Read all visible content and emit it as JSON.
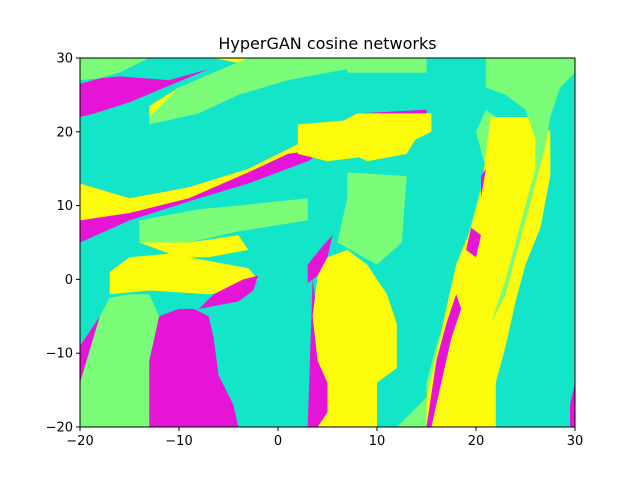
{
  "chart_data": {
    "type": "heatmap",
    "title": "HyperGAN cosine networks",
    "xlabel": "",
    "ylabel": "",
    "xlim": [
      -20,
      30
    ],
    "ylim": [
      -20,
      30
    ],
    "x_ticks": [
      -20,
      -10,
      0,
      10,
      20,
      30
    ],
    "y_ticks": [
      -20,
      -10,
      0,
      10,
      20,
      30
    ],
    "x_tick_labels": [
      "−20",
      "−10",
      "0",
      "10",
      "20",
      "30"
    ],
    "y_tick_labels": [
      "−20",
      "−10",
      "0",
      "10",
      "20",
      "30"
    ],
    "grid": false,
    "legend": "none",
    "classes": [
      {
        "name": "class-1",
        "color": "#13e5c9"
      },
      {
        "name": "class-2",
        "color": "#7afc78"
      },
      {
        "name": "class-3",
        "color": "#fbfb0b"
      },
      {
        "name": "class-4",
        "color": "#e514d6"
      }
    ],
    "regions": [
      {
        "class": "class-4",
        "points": [
          [
            -20,
            30
          ],
          [
            -6.5,
            30
          ],
          [
            -7,
            28.5
          ],
          [
            -15,
            24
          ],
          [
            -18.5,
            22.5
          ],
          [
            -20,
            22
          ]
        ]
      },
      {
        "class": "class-3",
        "points": [
          [
            -6.5,
            30
          ],
          [
            -3,
            30
          ],
          [
            -10,
            26
          ],
          [
            -13,
            23.5
          ],
          [
            -13,
            22
          ],
          [
            -7,
            24.5
          ],
          [
            -4,
            26.5
          ],
          [
            -1,
            28.5
          ]
        ]
      },
      {
        "class": "class-2",
        "points": [
          [
            -3,
            30
          ],
          [
            9,
            30
          ],
          [
            7,
            28.5
          ],
          [
            1,
            27
          ],
          [
            -4,
            25
          ],
          [
            -8,
            22.5
          ],
          [
            -13,
            21
          ],
          [
            -13,
            22
          ],
          [
            -10,
            26
          ]
        ]
      },
      {
        "class": "class-2",
        "points": [
          [
            -20,
            30
          ],
          [
            -13,
            30
          ],
          [
            -16,
            28
          ],
          [
            -20,
            26.5
          ]
        ]
      },
      {
        "class": "class-1",
        "points": [
          [
            -13,
            30
          ],
          [
            -6.5,
            30
          ],
          [
            -7,
            28.5
          ],
          [
            -11,
            27
          ],
          [
            -16,
            27.5
          ],
          [
            -20,
            27
          ],
          [
            -20,
            26.5
          ],
          [
            -16,
            28
          ]
        ]
      },
      {
        "class": "class-4",
        "points": [
          [
            -20,
            20
          ],
          [
            -20,
            13
          ],
          [
            -15,
            11
          ],
          [
            -9,
            12.5
          ],
          [
            -3,
            15
          ],
          [
            3,
            19
          ],
          [
            8,
            22.5
          ],
          [
            15,
            23
          ],
          [
            15,
            22
          ],
          [
            8,
            20
          ],
          [
            3,
            16
          ],
          [
            -3,
            13
          ],
          [
            -8,
            11
          ],
          [
            -15,
            8
          ],
          [
            -20,
            5
          ]
        ]
      },
      {
        "class": "class-3",
        "points": [
          [
            -20,
            13
          ],
          [
            -20,
            8
          ],
          [
            -15,
            9
          ],
          [
            -9,
            11
          ],
          [
            -3,
            14.5
          ],
          [
            1,
            17
          ],
          [
            6,
            18
          ],
          [
            9,
            16
          ],
          [
            13,
            17
          ],
          [
            15.5,
            22.5
          ],
          [
            8,
            22.5
          ],
          [
            3,
            19
          ],
          [
            -3,
            15
          ],
          [
            -9,
            12.5
          ],
          [
            -15,
            11
          ]
        ]
      },
      {
        "class": "class-3",
        "points": [
          [
            2,
            21
          ],
          [
            15.5,
            22.5
          ],
          [
            15.5,
            20
          ],
          [
            11,
            17
          ],
          [
            5,
            16
          ],
          [
            2,
            17
          ]
        ]
      },
      {
        "class": "class-2",
        "points": [
          [
            7,
            28
          ],
          [
            15,
            28
          ],
          [
            15,
            30
          ],
          [
            9,
            30
          ],
          [
            7,
            28.5
          ]
        ]
      },
      {
        "class": "class-2",
        "points": [
          [
            7,
            14.5
          ],
          [
            13,
            14
          ],
          [
            12.5,
            5
          ],
          [
            10,
            2
          ],
          [
            6,
            5
          ],
          [
            7,
            11
          ]
        ]
      },
      {
        "class": "class-2",
        "points": [
          [
            -14,
            8
          ],
          [
            -8,
            9.5
          ],
          [
            -4,
            10
          ],
          [
            3,
            11
          ],
          [
            3,
            8
          ],
          [
            -4,
            6.5
          ],
          [
            -9,
            5
          ],
          [
            -14,
            5
          ]
        ]
      },
      {
        "class": "class-3",
        "points": [
          [
            -14,
            5
          ],
          [
            -9,
            5
          ],
          [
            -4,
            6
          ],
          [
            -3,
            4
          ],
          [
            -7,
            3
          ],
          [
            -10,
            3
          ],
          [
            -12,
            4
          ]
        ]
      },
      {
        "class": "class-3",
        "points": [
          [
            -17,
            -2
          ],
          [
            -13,
            -1.5
          ],
          [
            -7,
            -2
          ],
          [
            -3.5,
            -1.5
          ],
          [
            -2,
            0
          ],
          [
            -3,
            1.5
          ],
          [
            -7,
            2.5
          ],
          [
            -11,
            3.5
          ],
          [
            -15,
            3
          ],
          [
            -17,
            1
          ]
        ]
      },
      {
        "class": "class-2",
        "points": [
          [
            -20,
            -20
          ],
          [
            -13,
            -20
          ],
          [
            -13,
            -11
          ],
          [
            -12,
            -5
          ],
          [
            -13,
            -2
          ],
          [
            -15,
            -2
          ],
          [
            -17,
            -2.5
          ],
          [
            -18,
            -5
          ],
          [
            -19,
            -7
          ],
          [
            -20,
            -9
          ]
        ]
      },
      {
        "class": "class-4",
        "points": [
          [
            -20,
            -14
          ],
          [
            -18,
            -5
          ],
          [
            -19,
            -7
          ],
          [
            -20,
            -9
          ]
        ]
      },
      {
        "class": "class-4",
        "points": [
          [
            -13,
            -20
          ],
          [
            -4,
            -20
          ],
          [
            -4.5,
            -17
          ],
          [
            -6,
            -13
          ],
          [
            -6.5,
            -8
          ],
          [
            -7,
            -5
          ],
          [
            -8.5,
            -4
          ],
          [
            -10,
            -4
          ],
          [
            -12,
            -5
          ],
          [
            -13,
            -11
          ]
        ]
      },
      {
        "class": "class-4",
        "points": [
          [
            -8,
            -4
          ],
          [
            -4,
            -3
          ],
          [
            -2.5,
            -1.5
          ],
          [
            -2,
            0.5
          ],
          [
            -3.5,
            0
          ],
          [
            -6.5,
            -2
          ]
        ]
      },
      {
        "class": "class-4",
        "points": [
          [
            3,
            -20
          ],
          [
            5,
            -20
          ],
          [
            5,
            -14
          ],
          [
            4,
            -11
          ],
          [
            4,
            -5
          ],
          [
            3.5,
            0
          ]
        ]
      },
      {
        "class": "class-4",
        "points": [
          [
            3,
            2
          ],
          [
            4.5,
            4.5
          ],
          [
            5.5,
            6
          ],
          [
            5,
            3
          ],
          [
            4,
            0.5
          ],
          [
            3,
            -0.5
          ]
        ]
      },
      {
        "class": "class-3",
        "points": [
          [
            4,
            -20
          ],
          [
            10,
            -20
          ],
          [
            10,
            -14
          ],
          [
            12,
            -12
          ],
          [
            12,
            -6
          ],
          [
            11,
            -2
          ],
          [
            9,
            2
          ],
          [
            7,
            4
          ],
          [
            5,
            3
          ],
          [
            4,
            0.5
          ],
          [
            3.5,
            -5
          ],
          [
            4,
            -11
          ],
          [
            5,
            -14
          ],
          [
            5,
            -18
          ]
        ]
      },
      {
        "class": "class-2",
        "points": [
          [
            12,
            -20
          ],
          [
            15,
            -20
          ],
          [
            15,
            -14
          ],
          [
            16,
            -9
          ],
          [
            17,
            -5
          ],
          [
            18,
            0
          ],
          [
            19,
            5
          ],
          [
            20,
            10
          ],
          [
            21,
            15
          ],
          [
            20,
            20
          ],
          [
            21,
            23
          ],
          [
            22,
            22
          ],
          [
            21,
            17
          ],
          [
            20.5,
            12
          ],
          [
            19.5,
            7
          ],
          [
            18,
            2
          ],
          [
            17,
            -4
          ],
          [
            16,
            -10
          ],
          [
            15,
            -16
          ]
        ]
      },
      {
        "class": "class-3",
        "points": [
          [
            15,
            -20
          ],
          [
            22,
            -20
          ],
          [
            22,
            -14
          ],
          [
            23,
            -9
          ],
          [
            24,
            -3
          ],
          [
            25,
            2
          ],
          [
            26.5,
            7
          ],
          [
            27.5,
            14
          ],
          [
            27.5,
            20
          ],
          [
            26,
            22
          ],
          [
            24,
            22
          ],
          [
            21.5,
            22
          ],
          [
            21,
            17
          ],
          [
            20.5,
            12
          ],
          [
            19.5,
            7
          ],
          [
            18,
            2
          ],
          [
            17,
            -4
          ],
          [
            16,
            -10
          ],
          [
            15,
            -16
          ]
        ]
      },
      {
        "class": "class-4",
        "points": [
          [
            15,
            -20
          ],
          [
            15.5,
            -20
          ],
          [
            16.5,
            -14
          ],
          [
            17.5,
            -8
          ],
          [
            18.5,
            -4
          ],
          [
            18,
            -2
          ],
          [
            17,
            -6
          ],
          [
            16,
            -11
          ]
        ]
      },
      {
        "class": "class-4",
        "points": [
          [
            20,
            3
          ],
          [
            20.5,
            6
          ],
          [
            19.5,
            7
          ],
          [
            19,
            4
          ]
        ]
      },
      {
        "class": "class-4",
        "points": [
          [
            20.5,
            11
          ],
          [
            21,
            15
          ],
          [
            20.5,
            14
          ]
        ]
      },
      {
        "class": "class-4",
        "points": [
          [
            29.5,
            -20
          ],
          [
            30,
            -20
          ],
          [
            30,
            -14
          ],
          [
            29.5,
            -17
          ]
        ]
      },
      {
        "class": "class-2",
        "points": [
          [
            21,
            30
          ],
          [
            30,
            30
          ],
          [
            30,
            28
          ],
          [
            28.5,
            26
          ],
          [
            27.5,
            22
          ],
          [
            27,
            18
          ],
          [
            26,
            13
          ],
          [
            25,
            8
          ],
          [
            24,
            3
          ],
          [
            23,
            -2
          ],
          [
            21.5,
            -6
          ],
          [
            22,
            -4
          ],
          [
            23,
            0
          ],
          [
            24,
            5
          ],
          [
            25,
            10
          ],
          [
            26,
            15
          ],
          [
            26,
            19
          ],
          [
            25,
            23
          ],
          [
            23,
            25
          ],
          [
            21,
            26
          ]
        ]
      }
    ]
  }
}
